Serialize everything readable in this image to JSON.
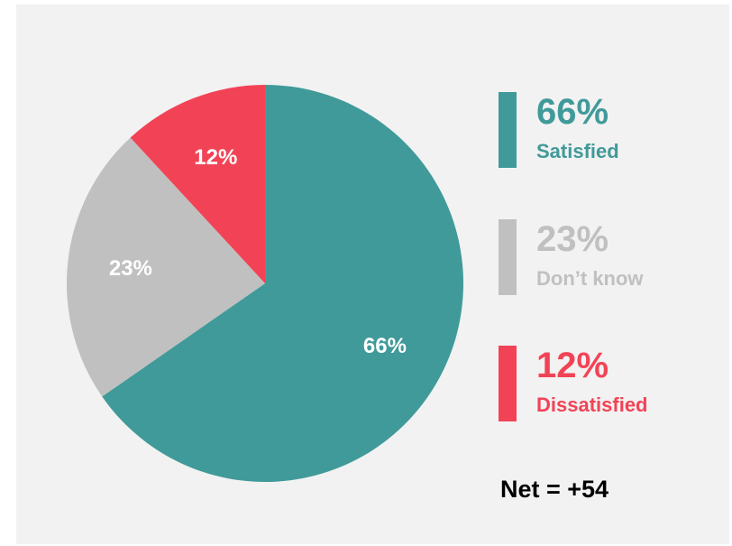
{
  "chart_data": {
    "type": "pie",
    "slices": [
      {
        "label": "Satisfied",
        "value": 66,
        "display": "66%",
        "color": "#419a9a"
      },
      {
        "label": "Don’t know",
        "value": 23,
        "display": "23%",
        "color": "#c0c0c0"
      },
      {
        "label": "Dissatisfied",
        "value": 12,
        "display": "12%",
        "color": "#f24356"
      }
    ],
    "start_angle_deg": 0,
    "direction": "clockwise",
    "legend_position": "right"
  },
  "legend": [
    {
      "pct": "66%",
      "name": "Satisfied"
    },
    {
      "pct": "23%",
      "name": "Don’t know"
    },
    {
      "pct": "12%",
      "name": "Dissatisfied"
    }
  ],
  "net_label": "Net = +54"
}
